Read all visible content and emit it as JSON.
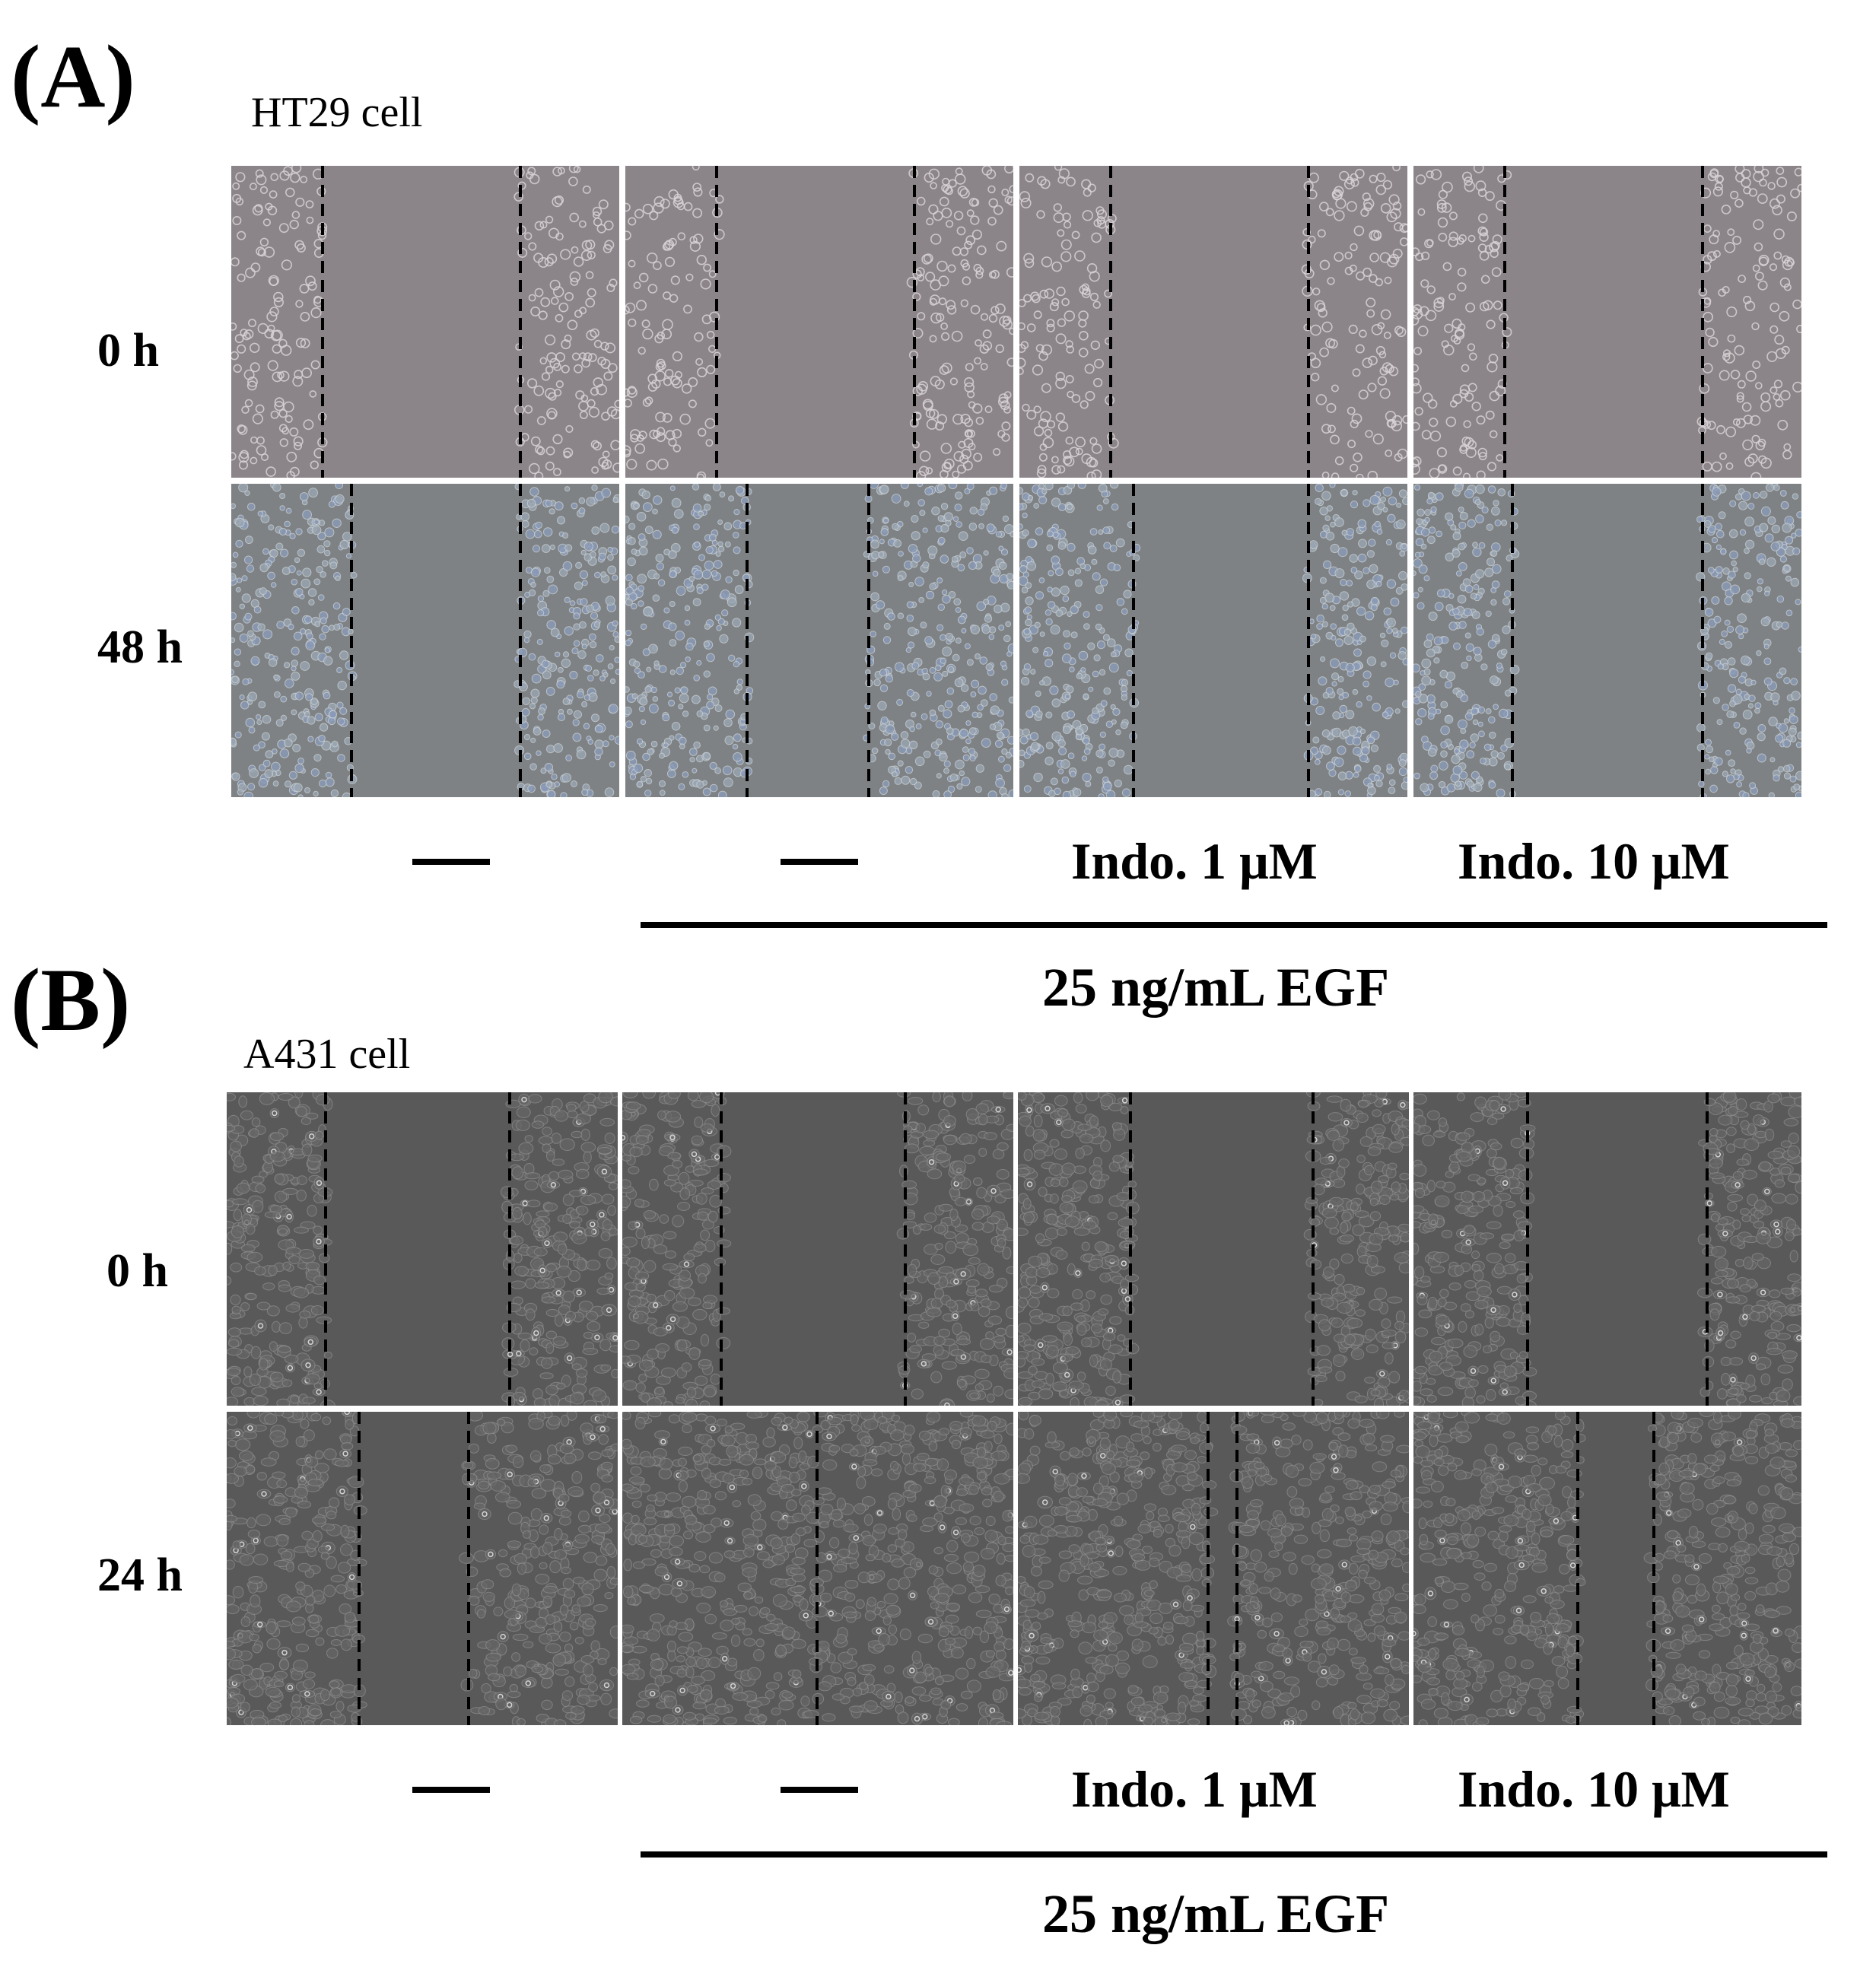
{
  "panels": [
    {
      "letter": "(A)",
      "cell_line": "HT29 cell",
      "rows": [
        "0 h",
        "48 h"
      ],
      "conditions": [
        "—",
        "—",
        "Indo. 1 μM",
        "Indo. 10 μM"
      ],
      "treatment": "25 ng/mL EGF"
    },
    {
      "letter": "(B)",
      "cell_line": "A431 cell",
      "rows": [
        "0 h",
        "24 h"
      ],
      "conditions": [
        "—",
        "—",
        "Indo. 1 μM",
        "Indo. 10 μM"
      ],
      "treatment": "25 ng/mL EGF"
    }
  ],
  "colors": {
    "ht29_0h_bg": "#8b8489",
    "ht29_48h_bg": "#7e8284",
    "a431_bg": "#595959",
    "cell_outline_light": "#d8d2d6",
    "cell_tint_blue": "#8a9ab8",
    "dash_line": "#000000"
  }
}
